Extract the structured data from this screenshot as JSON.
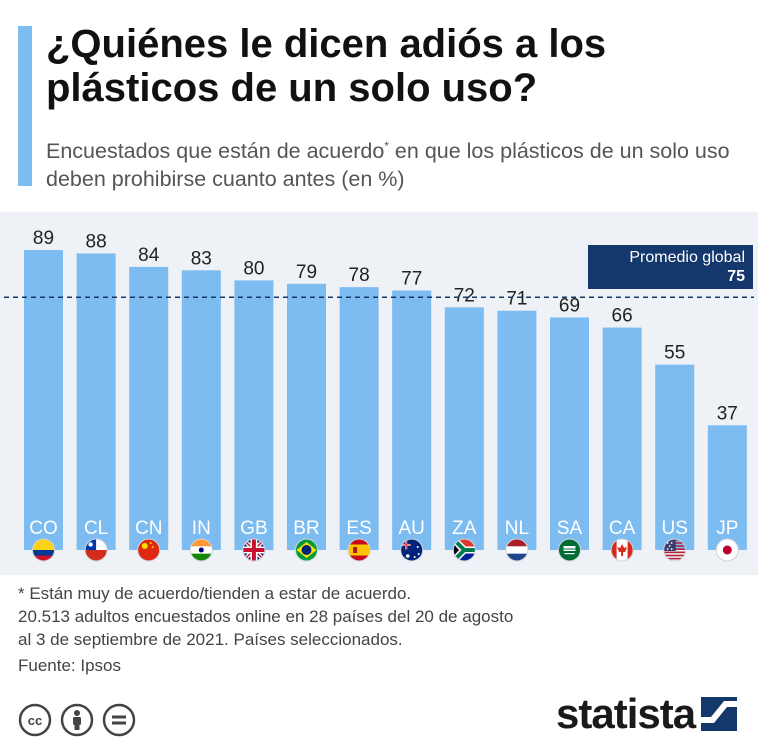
{
  "header": {
    "title": "¿Quiénes le dicen adiós a los plásticos de un solo uso?",
    "subtitle_pre": "Encuestados que están de acuerdo",
    "subtitle_mark": "*",
    "subtitle_post": " en que los plásticos de un solo uso deben prohibirse cuanto antes (en %)"
  },
  "chart_data": {
    "type": "bar",
    "categories": [
      "CO",
      "CL",
      "CN",
      "IN",
      "GB",
      "BR",
      "ES",
      "AU",
      "ZA",
      "NL",
      "SA",
      "CA",
      "US",
      "JP"
    ],
    "values": [
      89,
      88,
      84,
      83,
      80,
      79,
      78,
      77,
      72,
      71,
      69,
      66,
      55,
      37
    ],
    "ylim": [
      0,
      100
    ],
    "reference_line": {
      "label": "Promedio global",
      "value": 75
    },
    "flags": [
      "co-flag-icon",
      "cl-flag-icon",
      "cn-flag-icon",
      "in-flag-icon",
      "gb-flag-icon",
      "br-flag-icon",
      "es-flag-icon",
      "au-flag-icon",
      "za-flag-icon",
      "nl-flag-icon",
      "sa-flag-icon",
      "ca-flag-icon",
      "us-flag-icon",
      "jp-flag-icon"
    ],
    "bar_color": "#7cbcf1",
    "reference_color": "#14386b"
  },
  "average": {
    "label": "Promedio global",
    "value": "75"
  },
  "footer": {
    "note_line1": "* Están muy de acuerdo/tienden a estar de acuerdo.",
    "note_line2": "20.513 adultos encuestados online en 28 países del 20 de agosto",
    "note_line3": "al 3 de septiembre de 2021. Países seleccionados.",
    "source": "Fuente: Ipsos",
    "brand": "statista"
  }
}
